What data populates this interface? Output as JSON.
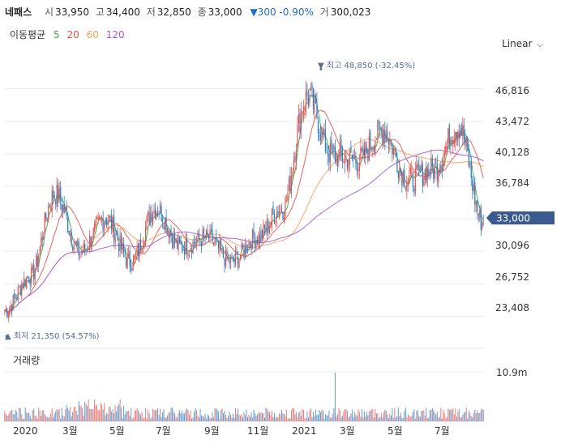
{
  "header": {
    "name": "네패스",
    "open_label": "시",
    "open": "33,950",
    "high_label": "고",
    "high": "34,400",
    "low_label": "저",
    "low": "32,850",
    "close_label": "종",
    "close": "33,000",
    "change": "▼300 -0.90%",
    "volume_label": "거",
    "volume": "300,023"
  },
  "ma_legend": {
    "title": "이동평균",
    "periods": [
      "5",
      "20",
      "60",
      "120"
    ],
    "colors": [
      "#3aa64c",
      "#e1544d",
      "#f0a35a",
      "#a259d9"
    ]
  },
  "scale_selector": {
    "label": "Linear",
    "icon": "chevron-down-icon"
  },
  "price_axis": {
    "ticks": [
      "46,816",
      "43,472",
      "40,128",
      "36,784",
      "30,096",
      "26,752",
      "23,408"
    ]
  },
  "current_price_tag": "33,000",
  "annotations": {
    "max": "▼ 최고 48,850 (-32.45%)",
    "min": "▲ 최저 21,350 (54.57%)"
  },
  "volume_panel": {
    "title": "거래량",
    "tick": "10.9m"
  },
  "time_axis": {
    "labels": [
      "2020",
      "3월",
      "5월",
      "7월",
      "9월",
      "11월",
      "2021",
      "3월",
      "5월",
      "7월"
    ]
  },
  "colors": {
    "up": "#e1544d",
    "down": "#2a7fc4",
    "tag": "#3c5a92"
  },
  "chart_data": {
    "type": "candlestick",
    "x": [
      "2020-01",
      "2020-02",
      "2020-03",
      "2020-04",
      "2020-05",
      "2020-06",
      "2020-07",
      "2020-08",
      "2020-09",
      "2020-10",
      "2020-11",
      "2020-12",
      "2021-01",
      "2021-02",
      "2021-03",
      "2021-04",
      "2021-05",
      "2021-06",
      "2021-07",
      "2021-08"
    ],
    "close": [
      24000,
      27500,
      36000,
      30000,
      33500,
      29000,
      34500,
      30500,
      31500,
      29000,
      31500,
      34500,
      46000,
      40000,
      39500,
      42500,
      37500,
      38500,
      43000,
      33000
    ],
    "max": {
      "value": 48850,
      "label": "최고 48,850 (-32.45%)"
    },
    "min": {
      "value": 21350,
      "label": "최저 21,350 (54.57%)"
    },
    "last": 33000,
    "moving_averages": [
      "5",
      "20",
      "60",
      "120"
    ],
    "y_ticks": [
      23408,
      26752,
      30096,
      33440,
      36784,
      40128,
      43472,
      46816
    ],
    "volume_max": "10.9m",
    "scale": "Linear"
  }
}
